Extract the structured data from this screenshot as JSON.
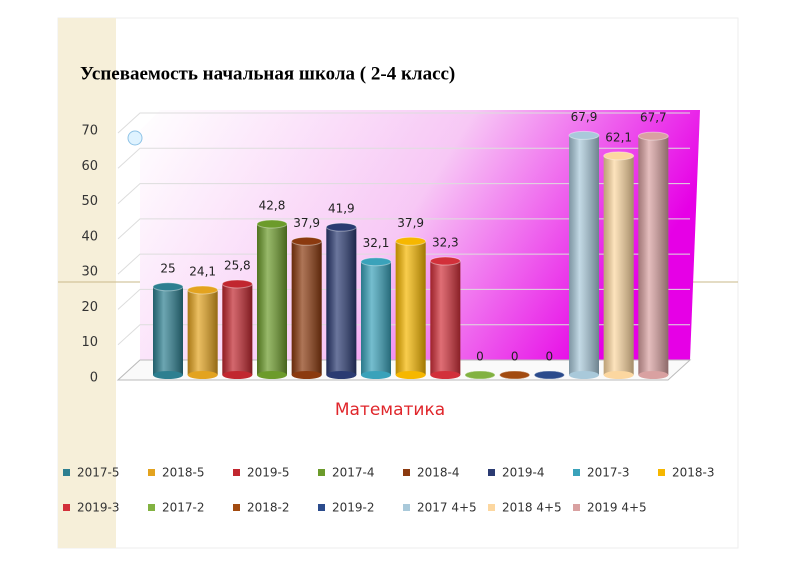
{
  "chart_data": {
    "type": "bar3d",
    "title": "Успеваемость начальная школа ( 2-4  класс)",
    "categories": [
      "Математика"
    ],
    "ylim": [
      0,
      70
    ],
    "yticks": [
      0,
      10,
      20,
      30,
      40,
      50,
      60,
      70
    ],
    "grid": true,
    "series": [
      {
        "name": "2017-5",
        "color": "#2d7f90",
        "values": [
          25
        ],
        "value_labels": [
          "25"
        ]
      },
      {
        "name": "2018-5",
        "color": "#e3a31f",
        "values": [
          24.1
        ],
        "value_labels": [
          "24,1"
        ]
      },
      {
        "name": "2019-5",
        "color": "#c1272f",
        "values": [
          25.8
        ],
        "value_labels": [
          "25,8"
        ]
      },
      {
        "name": "2017-4",
        "color": "#6c9b2b",
        "values": [
          42.8
        ],
        "value_labels": [
          "42,8"
        ]
      },
      {
        "name": "2018-4",
        "color": "#8b3a0f",
        "values": [
          37.9
        ],
        "value_labels": [
          "37,9"
        ]
      },
      {
        "name": "2019-4",
        "color": "#2b3b72",
        "values": [
          41.9
        ],
        "value_labels": [
          "41,9"
        ]
      },
      {
        "name": "2017-3",
        "color": "#3aa2ba",
        "values": [
          32.1
        ],
        "value_labels": [
          "32,1"
        ]
      },
      {
        "name": "2018-3",
        "color": "#f6b700",
        "values": [
          37.9
        ],
        "value_labels": [
          "37,9"
        ]
      },
      {
        "name": "2019-3",
        "color": "#d2303a",
        "values": [
          32.3
        ],
        "value_labels": [
          "32,3"
        ]
      },
      {
        "name": "2017-2",
        "color": "#82b241",
        "values": [
          0
        ],
        "value_labels": [
          "0"
        ]
      },
      {
        "name": "2018-2",
        "color": "#a24b10",
        "values": [
          0
        ],
        "value_labels": [
          "0"
        ]
      },
      {
        "name": "2019-2",
        "color": "#2b4b8c",
        "values": [
          0
        ],
        "value_labels": [
          "0"
        ]
      },
      {
        "name": "2017 4+5",
        "color": "#a9c9da",
        "values": [
          67.9
        ],
        "value_labels": [
          "67,9"
        ]
      },
      {
        "name": "2018 4+5",
        "color": "#fcd7a0",
        "values": [
          62.1
        ],
        "value_labels": [
          "62,1"
        ]
      },
      {
        "name": "2019 4+5",
        "color": "#d9a1a1",
        "values": [
          67.7
        ],
        "value_labels": [
          "67,7"
        ]
      }
    ]
  }
}
